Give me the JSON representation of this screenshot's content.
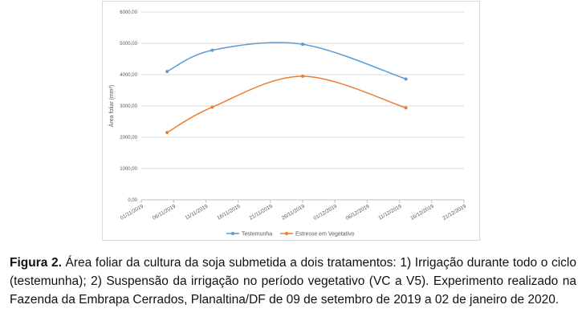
{
  "chart_data": {
    "type": "line",
    "ylabel": "Área foliar (mm²)",
    "ylim": [
      0,
      6000
    ],
    "yticks": [
      0,
      1000,
      2000,
      3000,
      4000,
      5000,
      6000
    ],
    "ytick_labels": [
      "0,00",
      "1000,00",
      "2000,00",
      "3000,00",
      "4000,00",
      "5000,00",
      "6000,00"
    ],
    "xlim": [
      "2019-11-01",
      "2019-12-21"
    ],
    "xticks": [
      "2019-11-01",
      "2019-11-06",
      "2019-11-11",
      "2019-11-16",
      "2019-11-21",
      "2019-11-26",
      "2019-12-01",
      "2019-12-06",
      "2019-12-11",
      "2019-12-16",
      "2019-12-21"
    ],
    "xtick_labels": [
      "01/11/2019",
      "06/11/2019",
      "11/11/2019",
      "16/11/2019",
      "21/11/2019",
      "26/11/2019",
      "01/12/2019",
      "06/12/2019",
      "11/12/2019",
      "16/12/2019",
      "21/12/2019"
    ],
    "grid": true,
    "legend_position": "bottom",
    "series": [
      {
        "name": "Testemunha",
        "color": "#5b9bd5",
        "x": [
          "2019-11-05",
          "2019-11-12",
          "2019-11-26",
          "2019-12-12"
        ],
        "y": [
          4100,
          4780,
          4970,
          3860
        ]
      },
      {
        "name": "Estresse em Vegetativo",
        "color": "#ed7d31",
        "x": [
          "2019-11-05",
          "2019-11-12",
          "2019-11-26",
          "2019-12-12"
        ],
        "y": [
          2150,
          2960,
          3950,
          2940
        ]
      }
    ]
  },
  "caption": {
    "label": "Figura 2.",
    "text": " Área foliar da cultura da soja submetida a dois tratamentos: 1) Irrigação durante todo o ciclo (testemunha); 2) Suspensão da irrigação no período vegetativo (VC a V5). Experimento realizado na Fazenda da Embrapa Cerrados, Planaltina/DF de 09 de setembro de 2019 a 02 de janeiro de 2020."
  }
}
